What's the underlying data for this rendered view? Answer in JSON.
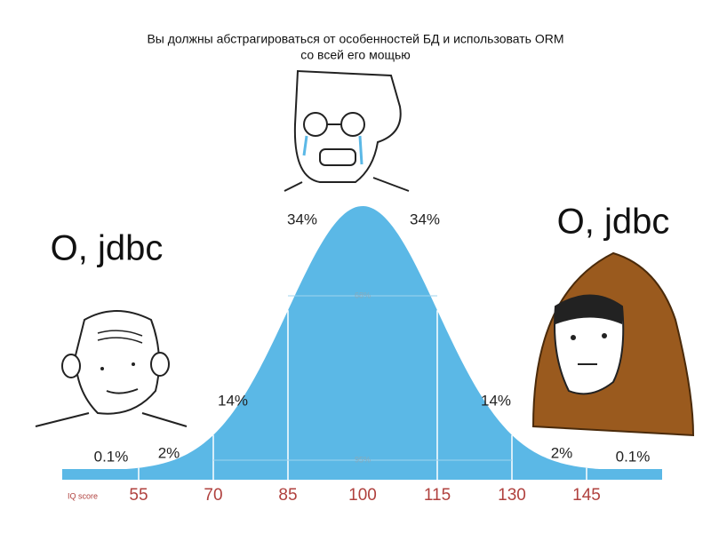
{
  "title": [
    "Вы должны абстрагироваться от особенностей БД и использовать ORM",
    "со всей его мощью"
  ],
  "left_caption": "O, jdbc",
  "right_caption": "O, jdbc",
  "percent_labels": [
    "0.1%",
    "2%",
    "14%",
    "34%",
    "34%",
    "14%",
    "2%",
    "0.1%"
  ],
  "inner_labels": [
    "68%",
    "95%"
  ],
  "axis": {
    "label": "IQ score",
    "ticks": [
      "55",
      "70",
      "85",
      "100",
      "115",
      "130",
      "145"
    ]
  }
}
